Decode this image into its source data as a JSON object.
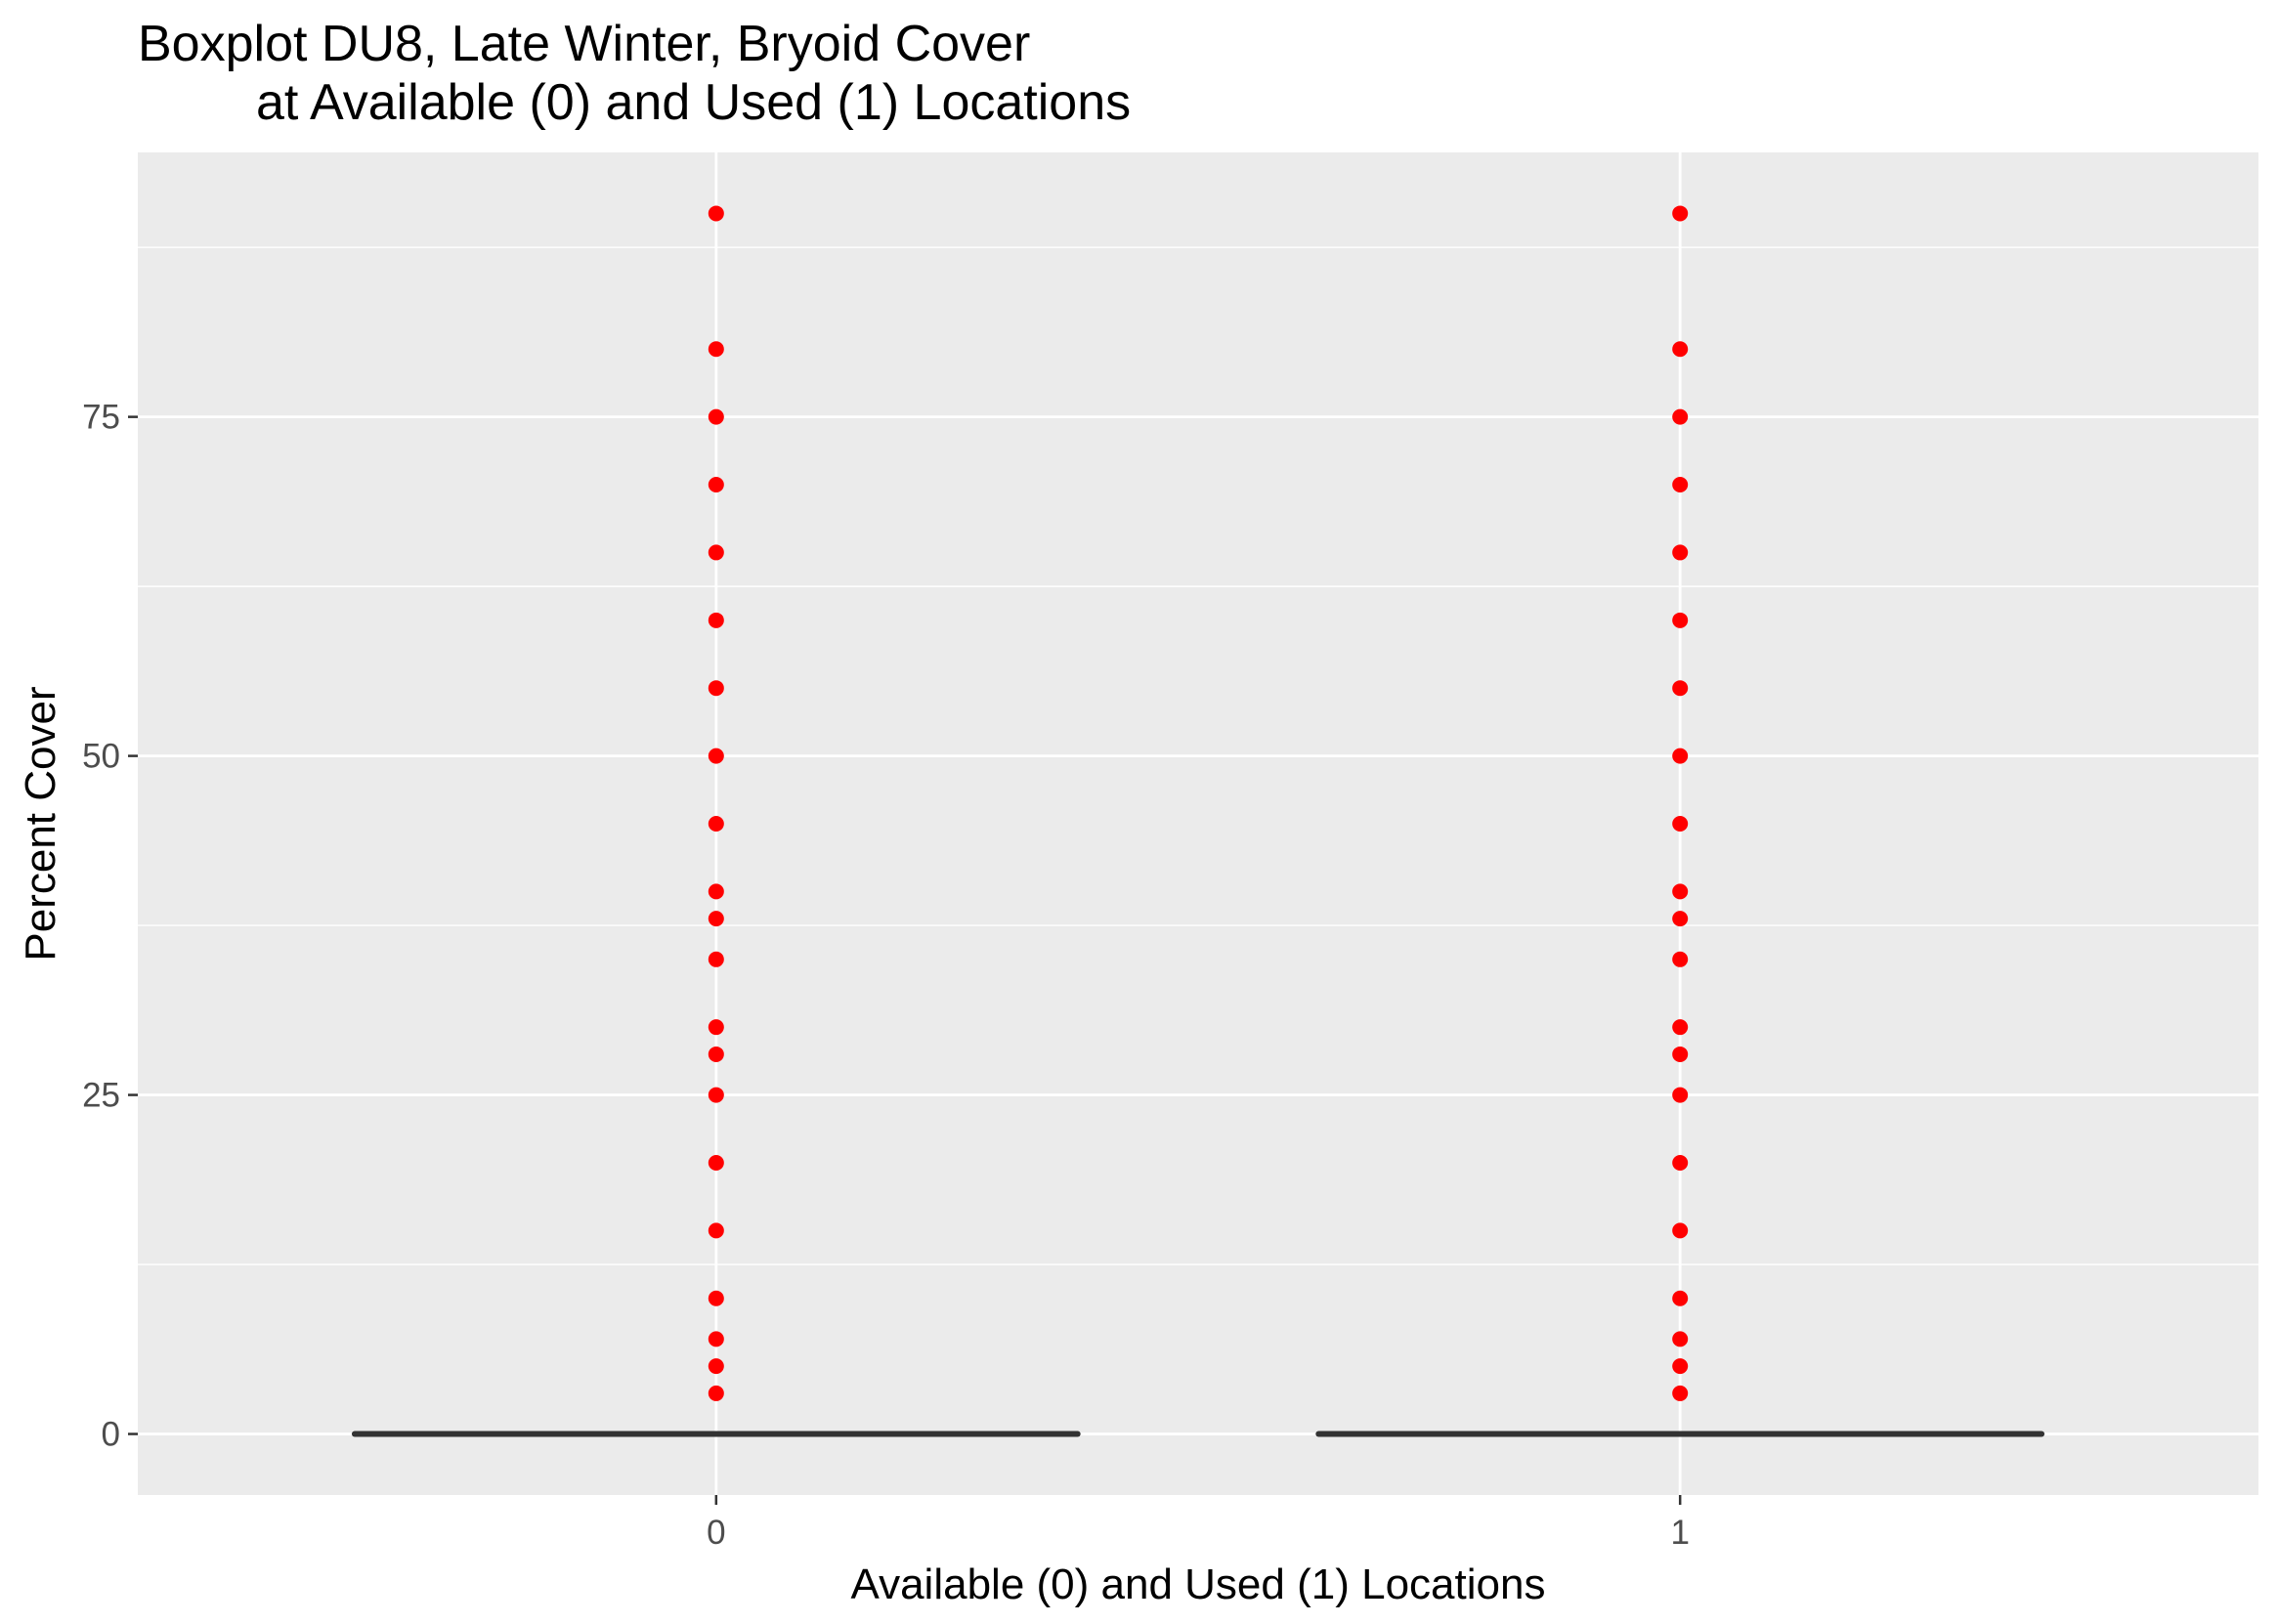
{
  "chart_data": {
    "type": "box",
    "title_lines": [
      "Boxplot DU8, Late Winter, Bryoid Cover",
      "at Available (0) and Used (1) Locations"
    ],
    "xlabel": "Available (0) and Used (1) Locations",
    "ylabel": "Percent Cover",
    "categories": [
      "0",
      "1"
    ],
    "y_ticks": [
      0,
      25,
      50,
      75
    ],
    "y_tick_labels": [
      "0",
      "25",
      "50",
      "75"
    ],
    "ylim": [
      -4.5,
      94.5
    ],
    "grid": true,
    "boxes": [
      {
        "category": "0",
        "min": 0,
        "q1": 0,
        "median": 0,
        "q3": 0,
        "max": 0,
        "outliers": [
          3,
          5,
          7,
          10,
          15,
          20,
          25,
          28,
          30,
          35,
          38,
          40,
          45,
          50,
          55,
          60,
          65,
          70,
          75,
          80,
          90
        ]
      },
      {
        "category": "1",
        "min": 0,
        "q1": 0,
        "median": 0,
        "q3": 0,
        "max": 0,
        "outliers": [
          3,
          5,
          7,
          10,
          15,
          20,
          25,
          28,
          30,
          35,
          38,
          40,
          45,
          50,
          55,
          60,
          65,
          70,
          75,
          80,
          90
        ]
      }
    ],
    "colors": {
      "panel_background": "#ebebeb",
      "grid_major": "#ffffff",
      "grid_minor": "#f5f5f5",
      "box_line": "#333333",
      "outlier": "#ff0000",
      "tick_mark": "#333333",
      "tick_label": "#4d4d4d"
    }
  }
}
